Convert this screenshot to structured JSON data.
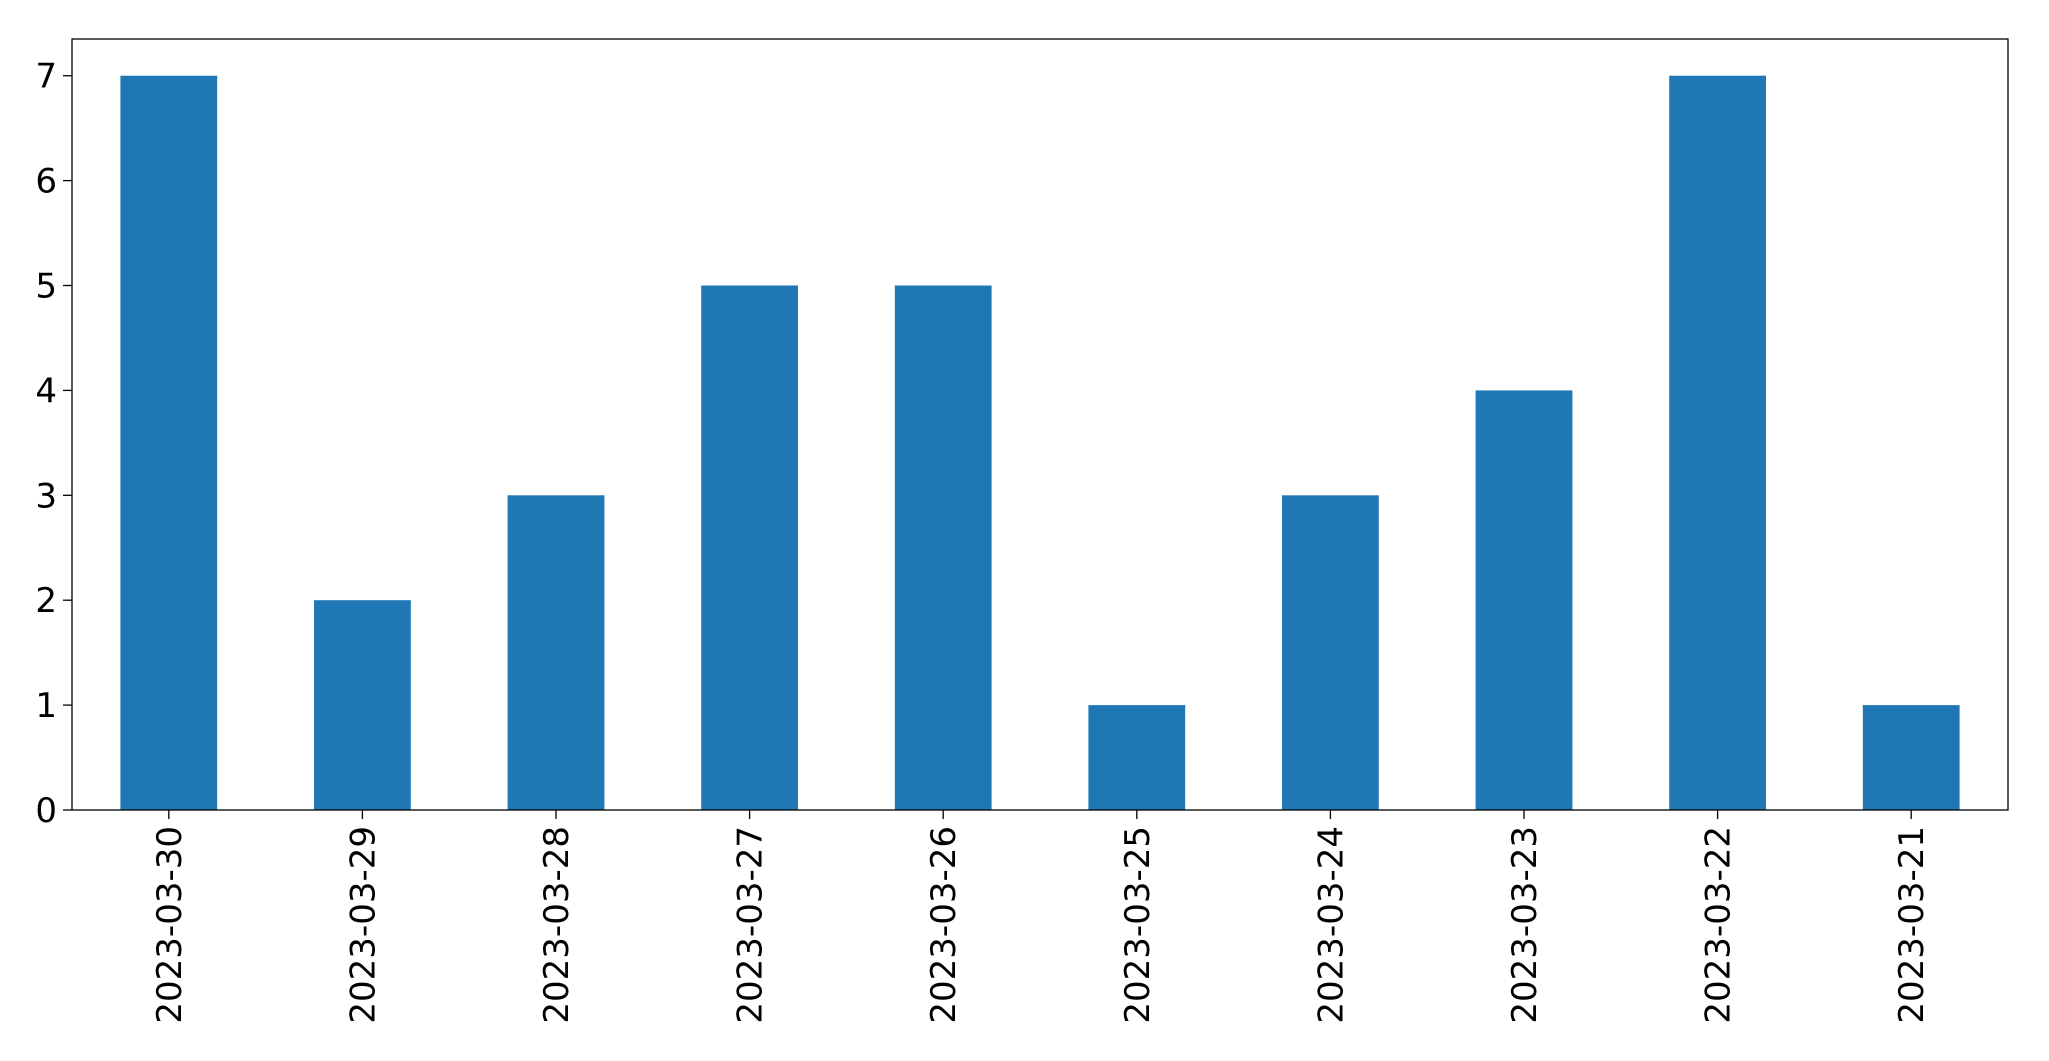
{
  "chart_data": {
    "type": "bar",
    "categories": [
      "2023-03-30",
      "2023-03-29",
      "2023-03-28",
      "2023-03-27",
      "2023-03-26",
      "2023-03-25",
      "2023-03-24",
      "2023-03-23",
      "2023-03-22",
      "2023-03-21"
    ],
    "values": [
      7,
      2,
      3,
      5,
      5,
      1,
      3,
      4,
      7,
      1
    ],
    "color": "#1f77b4",
    "ylim": [
      0,
      7.35
    ],
    "yticks": [
      0,
      1,
      2,
      3,
      4,
      5,
      6,
      7
    ],
    "grid": false
  }
}
